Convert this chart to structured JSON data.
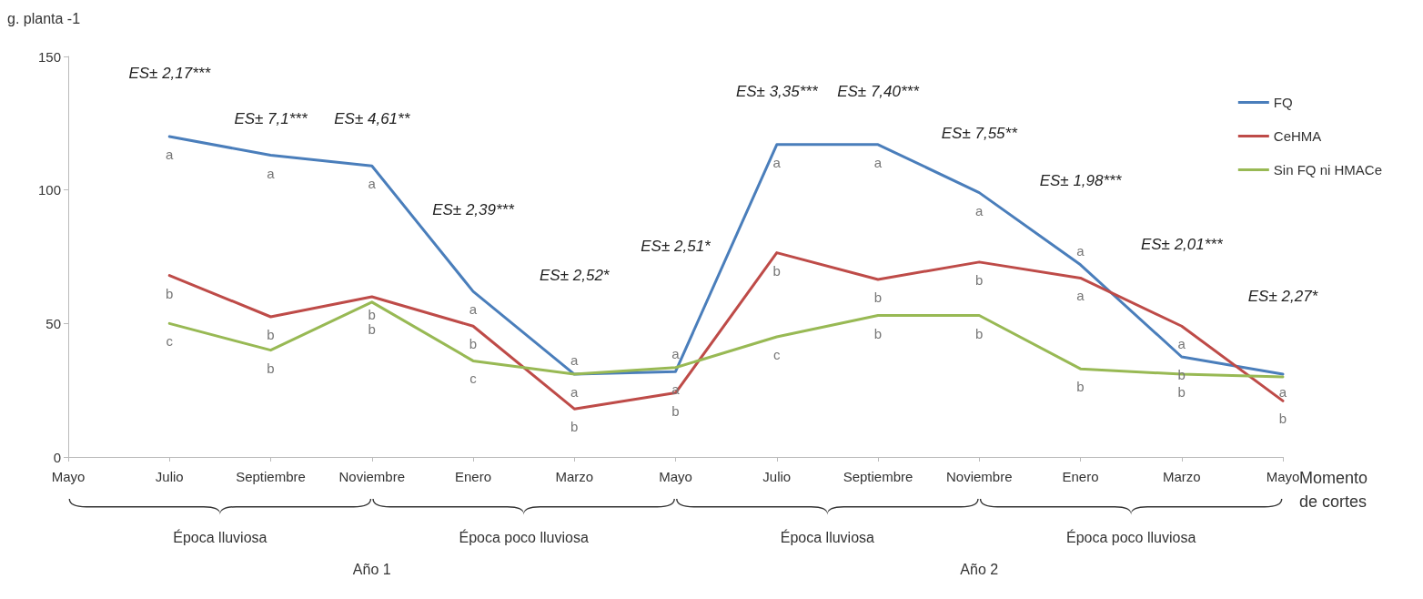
{
  "chart_data": {
    "type": "line",
    "ylabel": "g. planta -1",
    "xlabel": "Momento de cortes",
    "categories": [
      "Mayo",
      "Julio",
      "Septiembre",
      "Noviembre",
      "Enero",
      "Marzo",
      "Mayo",
      "Julio",
      "Septiembre",
      "Noviembre",
      "Enero",
      "Marzo",
      "Mayo"
    ],
    "ylim": [
      0,
      150
    ],
    "yticks": [
      0,
      50,
      100,
      150
    ],
    "grid": false,
    "legend": "top right",
    "marker": "none",
    "line_style": "solid",
    "series": [
      {
        "name": "FQ",
        "color": "#4a7ebb",
        "values": [
          null,
          120,
          113,
          109,
          62,
          31,
          32,
          117,
          117,
          99,
          72,
          37.5,
          31
        ],
        "value_labels": [
          null,
          "a",
          "a",
          "a",
          "a",
          "a",
          "a",
          "a",
          "a",
          "a",
          "a",
          "b",
          "a"
        ]
      },
      {
        "name": "CeHMA",
        "color": "#be4b48",
        "values": [
          null,
          68,
          52.5,
          60,
          49,
          18,
          24,
          76.5,
          66.5,
          73,
          67,
          49,
          21
        ],
        "value_labels": [
          null,
          "b",
          "b",
          "b",
          "b",
          "b",
          "b",
          "b",
          "b",
          "b",
          "a",
          "a",
          "b"
        ]
      },
      {
        "name": "Sin FQ ni HMACe",
        "color": "#98b954",
        "values": [
          null,
          50,
          40,
          58,
          36,
          31,
          33.5,
          45,
          53,
          53,
          33,
          31,
          30
        ],
        "value_labels": [
          null,
          "c",
          "b",
          "b",
          "c",
          "a",
          "a",
          "c",
          "b",
          "b",
          "b",
          "b",
          null
        ]
      }
    ],
    "annotations": [
      "ES± 2,17***",
      "ES± 7,1***",
      "ES± 4,61**",
      "ES± 2,39***",
      "ES± 2,52*",
      "ES± 2,51*",
      "ES± 3,35***",
      "ES± 7,40***",
      "ES± 7,55**",
      "ES± 1,98***",
      "ES± 2,01***",
      "ES± 2,27*",
      "Época lluviosa",
      "Época poco lluviosa",
      "Época lluviosa",
      "Época poco lluviosa",
      "Año 1",
      "Año 2"
    ]
  }
}
